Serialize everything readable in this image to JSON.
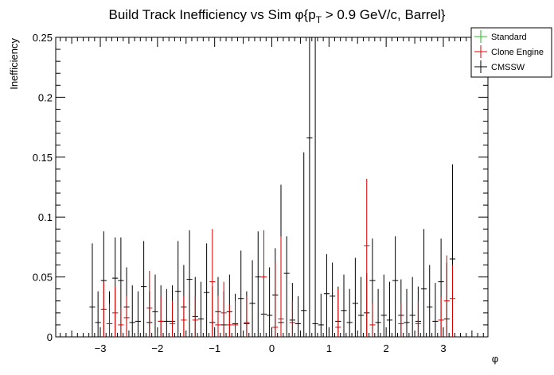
{
  "chart_data": {
    "type": "scatter",
    "title_main": "Build Track Inefficiency vs Sim ",
    "title_phi": "φ",
    "title_pt": "{p",
    "title_sub": "T",
    "title_rest": " > 0.9 GeV/c, Barrel}",
    "xlabel": "φ",
    "ylabel": "Inefficiency",
    "xlim": [
      -3.78,
      3.78
    ],
    "ylim": [
      0,
      0.25
    ],
    "x_ticks": [
      -3,
      -2,
      -1,
      0,
      1,
      2,
      3
    ],
    "x_tick_labels": [
      "−3",
      "−2",
      "−1",
      "0",
      "1",
      "2",
      "3"
    ],
    "y_ticks": [
      0,
      0.05,
      0.1,
      0.15,
      0.2,
      0.25
    ],
    "y_tick_labels": [
      "0",
      "0.05",
      "0.1",
      "0.15",
      "0.2",
      "0.25"
    ],
    "bin_half_width": 0.0503,
    "legend": [
      {
        "name": "Standard",
        "color": "#22bb22"
      },
      {
        "name": "Clone Engine",
        "color": "#dd0000"
      },
      {
        "name": "CMSSW",
        "color": "#000000"
      }
    ],
    "series": [
      {
        "name": "CMSSW",
        "color": "#000000",
        "points": [
          [
            -3.14,
            0.025,
            0.078
          ],
          [
            -3.04,
            0.012,
            0.038
          ],
          [
            -2.94,
            0.047,
            0.088
          ],
          [
            -2.84,
            0.011,
            0.038
          ],
          [
            -2.74,
            0.049,
            0.083
          ],
          [
            -2.64,
            0.047,
            0.083
          ],
          [
            -2.54,
            0.025,
            0.058
          ],
          [
            -2.44,
            0.012,
            0.043
          ],
          [
            -2.34,
            0.013,
            0.038
          ],
          [
            -2.24,
            0.042,
            0.08
          ],
          [
            -2.14,
            0.012,
            0.038
          ],
          [
            -2.04,
            0.021,
            0.052
          ],
          [
            -1.94,
            0.013,
            0.043
          ],
          [
            -1.84,
            0.013,
            0.04
          ],
          [
            -1.74,
            0.013,
            0.043
          ],
          [
            -1.64,
            0.038,
            0.08
          ],
          [
            -1.54,
            0.025,
            0.06
          ],
          [
            -1.44,
            0.048,
            0.089
          ],
          [
            -1.34,
            0.017,
            0.05
          ],
          [
            -1.24,
            0.015,
            0.046
          ],
          [
            -1.14,
            0.037,
            0.078
          ],
          [
            -1.04,
            0.012,
            0.042
          ],
          [
            -0.94,
            0.021,
            0.05
          ],
          [
            -0.84,
            0.01,
            0.038
          ],
          [
            -0.74,
            0.021,
            0.052
          ],
          [
            -0.64,
            0.011,
            0.036
          ],
          [
            -0.54,
            0.032,
            0.072
          ],
          [
            -0.44,
            0.011,
            0.038
          ],
          [
            -0.34,
            0.028,
            0.064
          ],
          [
            -0.24,
            0.05,
            0.088
          ],
          [
            -0.14,
            0.019,
            0.052
          ],
          [
            -0.04,
            0.018,
            0.058
          ],
          [
            0.06,
            0.035,
            0.074
          ],
          [
            0.16,
            0.012,
            0.127
          ],
          [
            0.26,
            0.053,
            0.084
          ],
          [
            0.36,
            0.014,
            0.045
          ],
          [
            0.46,
            0.011,
            0.034
          ],
          [
            0.56,
            0.022,
            0.154
          ],
          [
            0.66,
            0.166,
            0.25
          ],
          [
            0.76,
            0.011,
            0.25
          ],
          [
            0.86,
            0.01,
            0.036
          ],
          [
            0.96,
            0.036,
            0.069
          ],
          [
            1.06,
            0.034,
            0.062
          ],
          [
            1.16,
            0.013,
            0.042
          ],
          [
            1.26,
            0.022,
            0.052
          ],
          [
            1.36,
            0.012,
            0.04
          ],
          [
            1.46,
            0.028,
            0.066
          ],
          [
            1.56,
            0.018,
            0.05
          ],
          [
            1.66,
            0.02,
            0.053
          ],
          [
            1.76,
            0.047,
            0.082
          ],
          [
            1.86,
            0.012,
            0.04
          ],
          [
            1.96,
            0.018,
            0.052
          ],
          [
            2.06,
            0.014,
            0.046
          ],
          [
            2.16,
            0.047,
            0.084
          ],
          [
            2.26,
            0.018,
            0.048
          ],
          [
            2.36,
            0.012,
            0.04
          ],
          [
            2.46,
            0.018,
            0.05
          ],
          [
            2.56,
            0.013,
            0.042
          ],
          [
            2.66,
            0.04,
            0.09
          ],
          [
            2.76,
            0.025,
            0.06
          ],
          [
            2.86,
            0.013,
            0.045
          ],
          [
            2.96,
            0.046,
            0.082
          ],
          [
            3.06,
            0.015,
            0.062
          ],
          [
            3.16,
            0.065,
            0.144
          ]
        ]
      },
      {
        "name": "Clone Engine",
        "color": "#dd0000",
        "points": [
          [
            -2.94,
            0.023,
            0.046
          ],
          [
            -2.84,
            0.011,
            0.028
          ],
          [
            -2.74,
            0.02,
            0.042
          ],
          [
            -2.64,
            0.01,
            0.024
          ],
          [
            -2.54,
            0.016,
            0.034
          ],
          [
            -2.14,
            0.024,
            0.055
          ],
          [
            -1.94,
            0.013,
            0.034
          ],
          [
            -1.74,
            0.011,
            0.03
          ],
          [
            -1.54,
            0.014,
            0.034
          ],
          [
            -1.34,
            0.014,
            0.034
          ],
          [
            -1.04,
            0.046,
            0.09
          ],
          [
            -0.94,
            0.01,
            0.034
          ],
          [
            -0.84,
            0.02,
            0.046
          ],
          [
            -0.74,
            0.01,
            0.027
          ],
          [
            -0.64,
            0.01,
            0.03
          ],
          [
            -0.44,
            0.012,
            0.034
          ],
          [
            -0.14,
            0.05,
            0.089
          ],
          [
            0.06,
            0.008,
            0.062
          ],
          [
            0.16,
            0.015,
            0.084
          ],
          [
            0.36,
            0.012,
            0.03
          ],
          [
            1.16,
            0.008,
            0.04
          ],
          [
            1.66,
            0.076,
            0.132
          ],
          [
            1.76,
            0.01,
            0.028
          ],
          [
            2.26,
            0.011,
            0.028
          ],
          [
            2.56,
            0.011,
            0.03
          ],
          [
            2.96,
            0.014,
            0.033
          ],
          [
            3.06,
            0.03,
            0.068
          ],
          [
            3.16,
            0.032,
            0.06
          ]
        ]
      }
    ]
  }
}
